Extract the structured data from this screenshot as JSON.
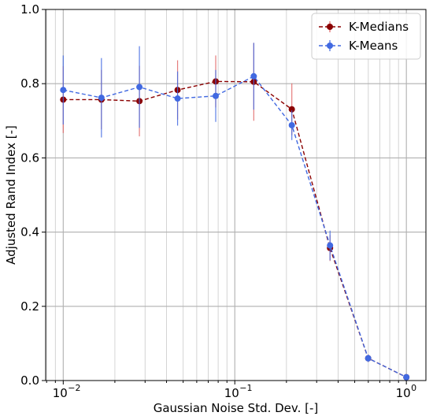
{
  "chart_data": {
    "type": "line",
    "xlabel": "Gaussian Noise Std. Dev. [-]",
    "ylabel": "Adjusted Rand Index [-]",
    "xscale": "log",
    "xlim": [
      0.0079,
      1.3
    ],
    "ylim": [
      0.0,
      1.0
    ],
    "grid": "on",
    "legend_position": "top-right",
    "x": [
      0.01,
      0.0167,
      0.0278,
      0.0464,
      0.0774,
      0.129,
      0.215,
      0.359,
      0.599,
      1.0
    ],
    "series": [
      {
        "name": "K-Medians",
        "color": "#8b0000",
        "errorbar_color": "#e06666",
        "marker": "circle",
        "linestyle": "dashed",
        "values": [
          0.757,
          0.757,
          0.753,
          0.783,
          0.806,
          0.805,
          0.731,
          0.357,
          0.06,
          0.009
        ],
        "errors": [
          0.09,
          0.08,
          0.095,
          0.08,
          0.07,
          0.105,
          0.07,
          0.035,
          0.01,
          0.005
        ]
      },
      {
        "name": "K-Means",
        "color": "#4169e1",
        "errorbar_color": "#4169e1",
        "marker": "circle",
        "linestyle": "dashed",
        "values": [
          0.783,
          0.762,
          0.791,
          0.76,
          0.767,
          0.82,
          0.688,
          0.364,
          0.06,
          0.009
        ],
        "errors": [
          0.093,
          0.107,
          0.11,
          0.073,
          0.07,
          0.09,
          0.04,
          0.04,
          0.01,
          0.005
        ]
      }
    ],
    "x_ticks": [
      {
        "value": 0.01,
        "label": "10",
        "exp": "−2"
      },
      {
        "value": 0.1,
        "label": "10",
        "exp": "−1"
      },
      {
        "value": 1.0,
        "label": "10",
        "exp": "0"
      }
    ],
    "y_ticks": [
      {
        "value": 0.0,
        "label": "0.0"
      },
      {
        "value": 0.2,
        "label": "0.2"
      },
      {
        "value": 0.4,
        "label": "0.4"
      },
      {
        "value": 0.6,
        "label": "0.6"
      },
      {
        "value": 0.8,
        "label": "0.8"
      },
      {
        "value": 1.0,
        "label": "1.0"
      }
    ]
  }
}
